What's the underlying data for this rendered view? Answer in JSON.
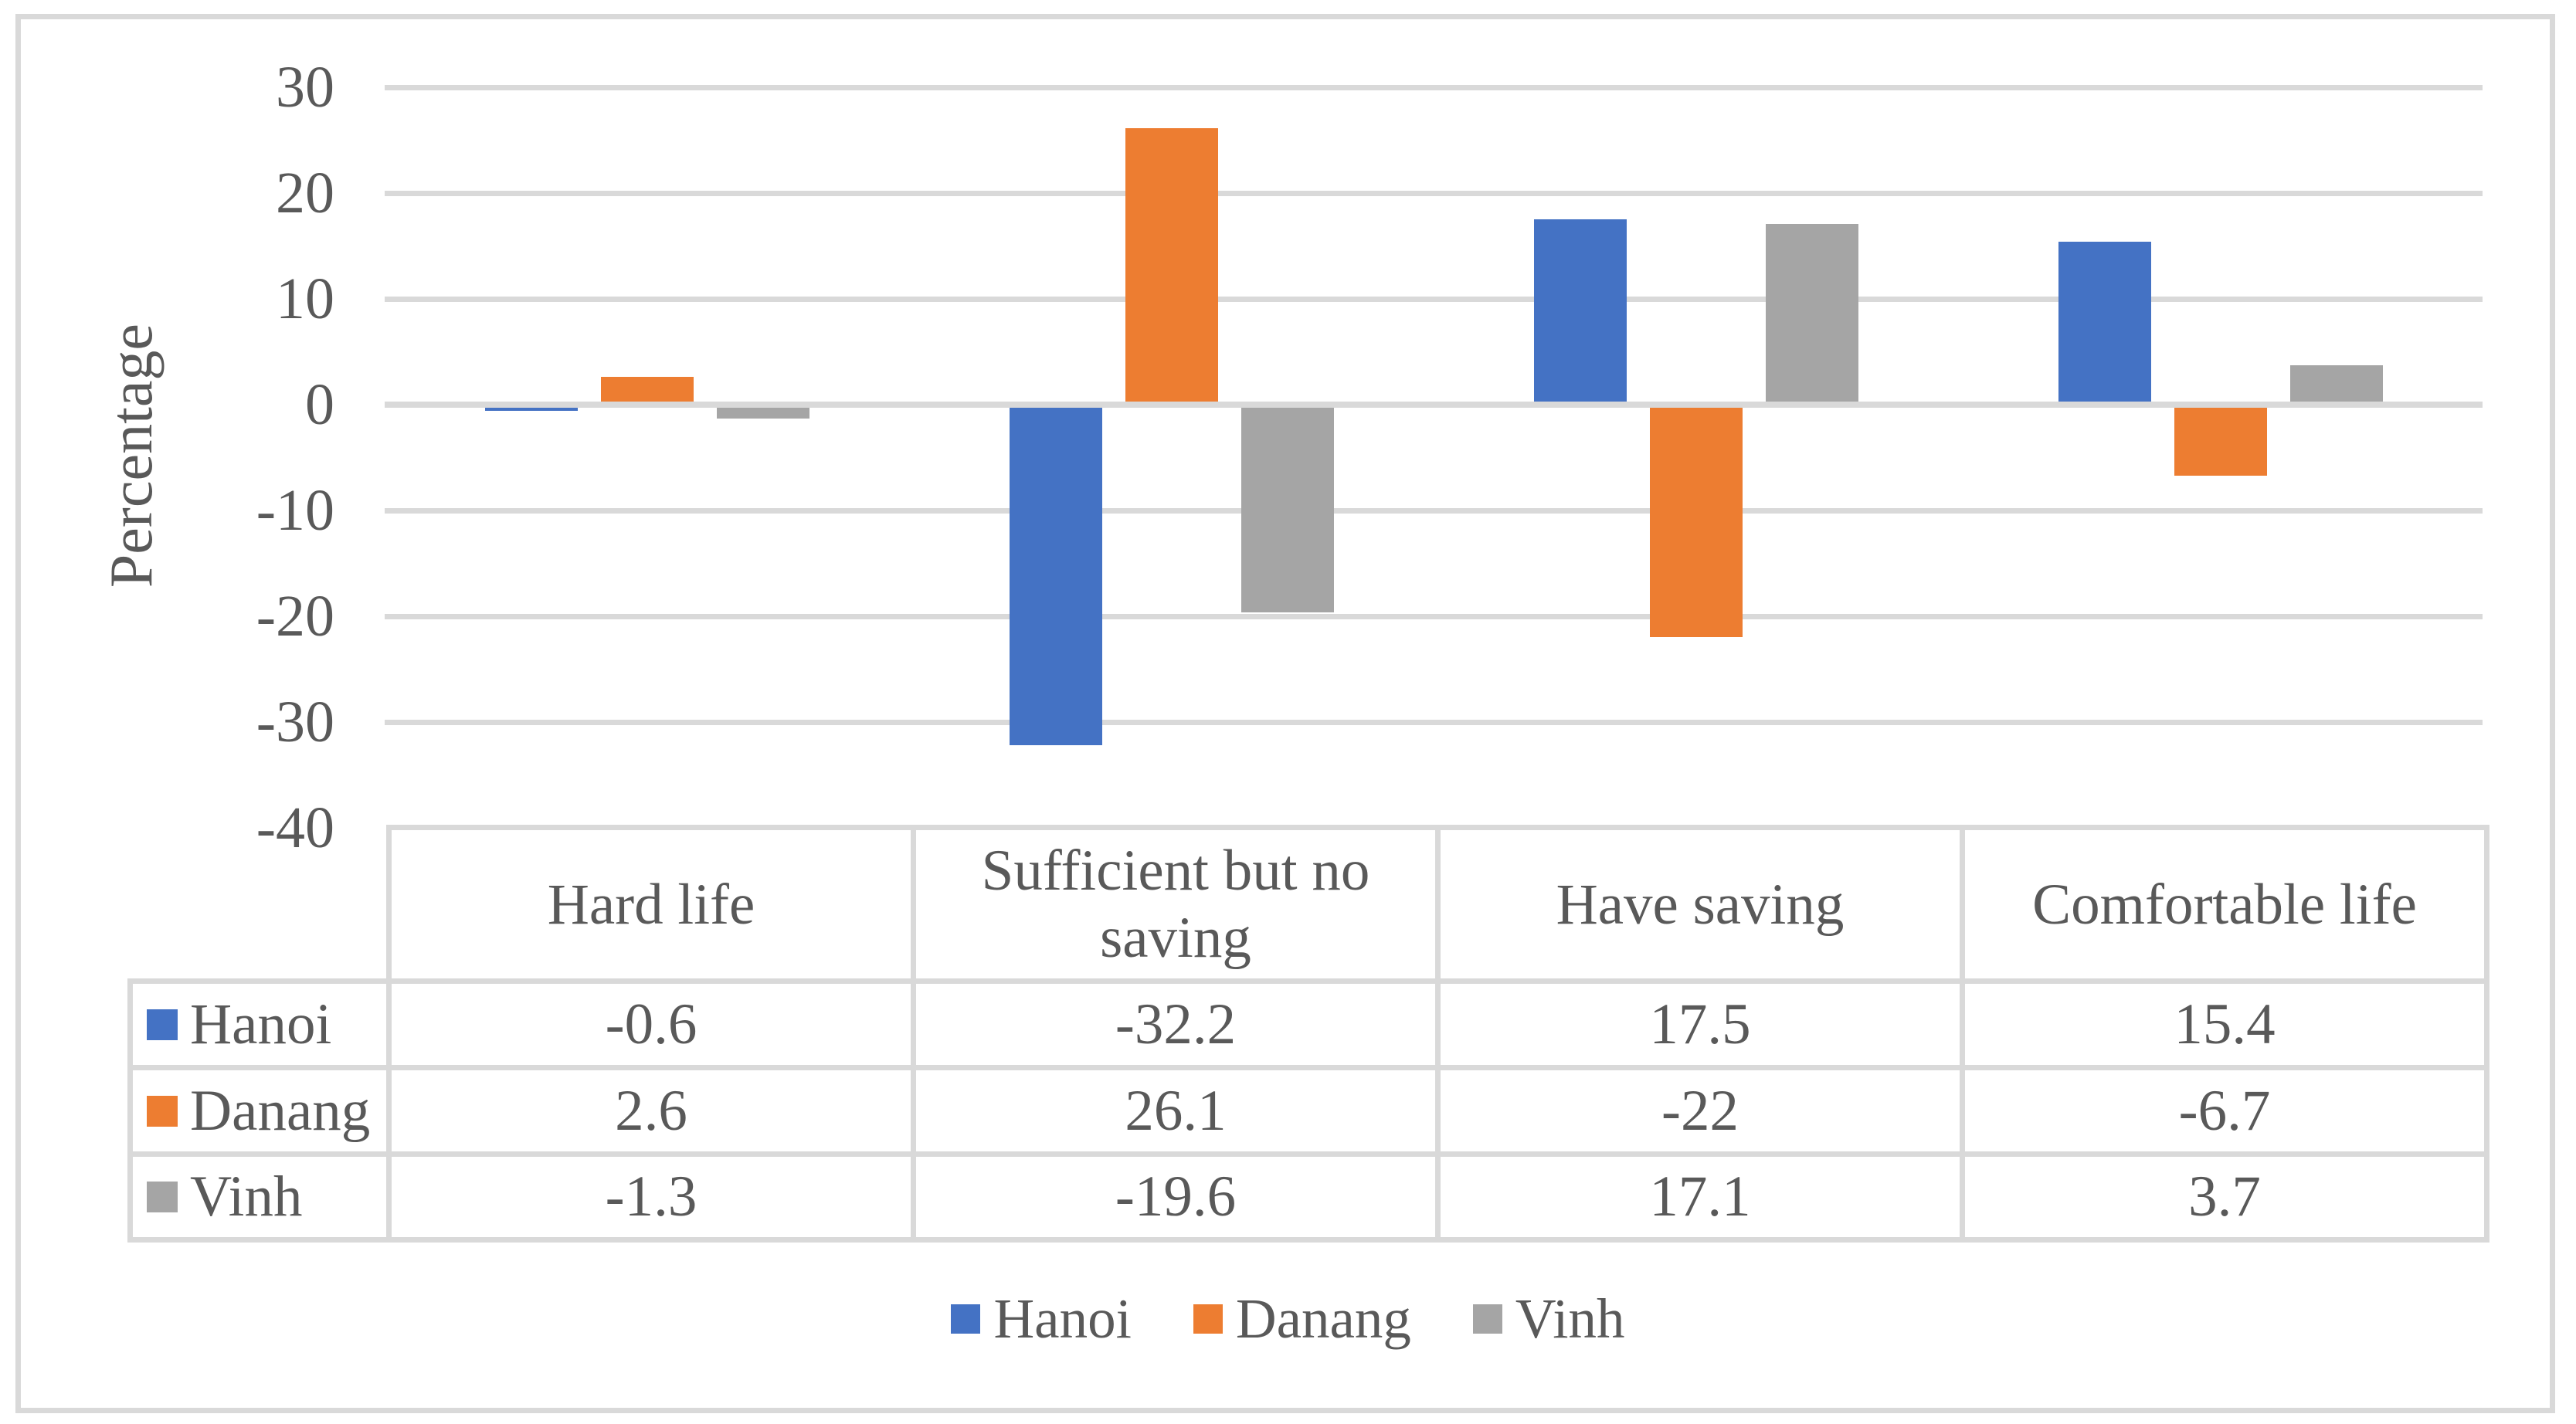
{
  "figure": {
    "kind": "excel-clustered-column-chart"
  },
  "colors": {
    "hanoi": "#4472C4",
    "danang": "#ED7D31",
    "vinh": "#A5A5A5",
    "gridline": "#D9D9D9",
    "table_border": "#D9D9D9",
    "text": "#595959",
    "background": "#FFFFFF"
  },
  "chart_data": {
    "type": "bar",
    "title": "",
    "ylabel": "Percentage",
    "xlabel": "",
    "categories": [
      "Hard life",
      "Sufficient but no saving",
      "Have saving",
      "Comfortable life"
    ],
    "series": [
      {
        "name": "Hanoi",
        "color": "#4472C4",
        "values": [
          -0.6,
          -32.2,
          17.5,
          15.4
        ]
      },
      {
        "name": "Danang",
        "color": "#ED7D31",
        "values": [
          2.6,
          26.1,
          -22,
          -6.7
        ]
      },
      {
        "name": "Vinh",
        "color": "#A5A5A5",
        "values": [
          -1.3,
          -19.6,
          17.1,
          3.7
        ]
      }
    ],
    "ylim": [
      -40,
      30
    ],
    "ytick_step": 10,
    "grid": true,
    "legend_position": "bottom",
    "data_table_shown": true
  },
  "y_axis": {
    "label": "Percentage",
    "ticks": [
      "30",
      "20",
      "10",
      "0",
      "-10",
      "-20",
      "-30",
      "-40"
    ]
  },
  "data_table": {
    "column_headers": [
      "Hard life",
      "Sufficient but no saving",
      "Have saving",
      "Comfortable life"
    ],
    "row_headers": [
      "Hanoi",
      "Danang",
      "Vinh"
    ],
    "rows": [
      [
        "-0.6",
        "-32.2",
        "17.5",
        "15.4"
      ],
      [
        "2.6",
        "26.1",
        "-22",
        "-6.7"
      ],
      [
        "-1.3",
        "-19.6",
        "17.1",
        "3.7"
      ]
    ]
  },
  "legend": {
    "items": [
      {
        "label": "Hanoi",
        "color": "#4472C4"
      },
      {
        "label": "Danang",
        "color": "#ED7D31"
      },
      {
        "label": "Vinh",
        "color": "#A5A5A5"
      }
    ]
  }
}
